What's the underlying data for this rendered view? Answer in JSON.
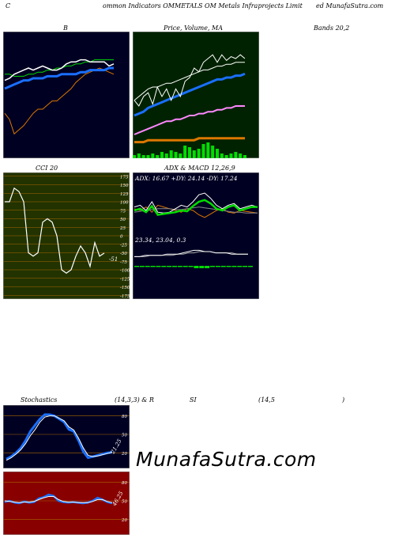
{
  "header": {
    "left": "C",
    "title": "ommon Indicators OMMETALS OM Metals Infraprojects Limit",
    "right": "ed MunafaSutra.com"
  },
  "row1": {
    "label_b": "B",
    "label_price": "Price, Volume, MA",
    "label_bands": "Bands 20,2"
  },
  "row2": {
    "label_cci": "CCI 20",
    "label_adx": "ADX  & MACD 12,26,9",
    "adx_readout": "ADX: 16.67  +DY: 24.14  -DY: 17.24",
    "macd_readout": "23.34,  23.04,  0.3",
    "cci_last": "-51"
  },
  "row3": {
    "label_stoch": "Stochastics",
    "label_params": "(14,3,3) & R",
    "label_si": "SI",
    "label_rsi": "(14,5",
    "label_close": ")",
    "stoch_last": "21.25",
    "rsi_last": "46.25"
  },
  "watermark": "MunafaSutra.com",
  "colors": {
    "bb_bg": "#000022",
    "price_bg": "#002200",
    "cci_bg": "#223300",
    "adx_bg": "#000022",
    "stoch_bg": "#000022",
    "rsi_bg": "#880000",
    "blue": "#1a6fff",
    "green": "#00dd00",
    "orange": "#dd7700",
    "white": "#ffffff",
    "pink": "#ff88ff",
    "grid": "#aa6600"
  },
  "chart_data": [
    {
      "type": "line",
      "name": "Bollinger Bands 20,2",
      "series": [
        {
          "values": [
            52,
            55,
            62,
            60,
            58,
            55,
            52,
            50,
            50,
            48,
            46,
            46,
            44,
            42,
            40,
            37,
            35,
            33,
            32,
            31,
            30,
            31,
            32,
            33
          ]
        },
        {
          "values": [
            33,
            33,
            34,
            34,
            34,
            33,
            33,
            32,
            32,
            31,
            31,
            30,
            30,
            29,
            29,
            28,
            28,
            27,
            27,
            26,
            26,
            26,
            26,
            26
          ]
        },
        {
          "values": [
            40,
            39,
            38,
            37,
            36,
            36,
            35,
            35,
            35,
            34,
            34,
            34,
            33,
            33,
            33,
            33,
            32,
            32,
            31,
            31,
            31,
            31,
            30,
            30
          ]
        },
        {
          "values": [
            58,
            56,
            52,
            49,
            47,
            44,
            42,
            41,
            40,
            39,
            39,
            38,
            36,
            35,
            34,
            33,
            33,
            32,
            32,
            32,
            32,
            31,
            31,
            31
          ]
        },
        {
          "values": [
            36,
            35,
            33,
            32,
            31,
            30,
            31,
            30,
            29,
            30,
            31,
            31,
            30,
            28,
            27,
            27,
            26,
            26,
            27,
            27,
            27,
            27,
            29,
            28
          ]
        }
      ]
    },
    {
      "type": "line",
      "name": "Price, Volume, MA",
      "series": [
        {
          "values": [
            52,
            55,
            50,
            48,
            54,
            45,
            50,
            46,
            52,
            46,
            50,
            42,
            40,
            35,
            37,
            32,
            30,
            28,
            32,
            28,
            31,
            29,
            30,
            28,
            30
          ]
        },
        {
          "values": [
            60,
            59,
            58,
            56,
            55,
            54,
            53,
            52,
            51,
            50,
            49,
            48,
            47,
            46,
            45,
            44,
            43,
            42,
            41,
            41,
            40,
            40,
            39,
            39,
            38
          ]
        },
        {
          "values": [
            52,
            50,
            48,
            46,
            45,
            45,
            44,
            43,
            43,
            42,
            41,
            40,
            39,
            38,
            37,
            36,
            36,
            35,
            34,
            34,
            33,
            33,
            32,
            32,
            32
          ]
        },
        {
          "values": [
            70,
            69,
            68,
            67,
            66,
            65,
            64,
            63,
            63,
            62,
            62,
            61,
            60,
            60,
            59,
            59,
            58,
            58,
            57,
            57,
            56,
            56,
            55,
            55,
            55
          ]
        },
        {
          "values": [
            74,
            74,
            74,
            73,
            73,
            73,
            73,
            73,
            73,
            73,
            73,
            73,
            73,
            73,
            72,
            72,
            72,
            72,
            72,
            72,
            72,
            72,
            72,
            72,
            72
          ]
        }
      ],
      "volume": [
        2,
        3,
        2,
        2,
        3,
        2,
        4,
        3,
        5,
        4,
        3,
        8,
        7,
        5,
        6,
        9,
        10,
        8,
        6,
        3,
        2,
        3,
        4,
        3,
        2
      ]
    },
    {
      "type": "line",
      "name": "CCI 20",
      "yticks": [
        175,
        150,
        125,
        100,
        75,
        50,
        25,
        0,
        -25,
        -50,
        -75,
        -100,
        -125,
        -150,
        -175
      ],
      "values": [
        100,
        100,
        140,
        130,
        100,
        -50,
        -60,
        -50,
        40,
        50,
        40,
        0,
        -100,
        -110,
        -100,
        -60,
        -30,
        -50,
        -90,
        -20,
        -60,
        -51
      ]
    },
    {
      "type": "line",
      "name": "ADX & MACD",
      "adx": {
        "plus_di": [
          20,
          22,
          18,
          25,
          15,
          16,
          17,
          18,
          20,
          19,
          25,
          30,
          32,
          28,
          22,
          20,
          24,
          26,
          20,
          22,
          24,
          24
        ],
        "minus_di": [
          22,
          20,
          24,
          18,
          26,
          24,
          22,
          20,
          18,
          22,
          20,
          15,
          12,
          16,
          20,
          22,
          18,
          17,
          20,
          19,
          18,
          17
        ],
        "adx": [
          18,
          19,
          20,
          21,
          22,
          22,
          22,
          21,
          21,
          22,
          23,
          24,
          23,
          22,
          21,
          20,
          19,
          18,
          18,
          17,
          17,
          17
        ],
        "white": [
          24,
          26,
          20,
          30,
          18,
          17,
          18,
          22,
          26,
          24,
          30,
          38,
          40,
          34,
          26,
          22,
          26,
          28,
          22,
          24,
          26,
          24
        ]
      },
      "macd": {
        "macd": [
          21,
          21,
          22,
          22,
          22,
          22,
          23,
          23,
          23,
          24,
          25,
          26,
          26,
          25,
          25,
          24,
          24,
          24,
          23,
          23,
          23,
          23
        ],
        "signal": [
          21,
          21,
          21,
          22,
          22,
          22,
          22,
          22,
          23,
          23,
          24,
          24,
          25,
          25,
          25,
          24,
          24,
          24,
          24,
          23,
          23,
          23
        ],
        "hist": [
          1,
          1,
          1,
          1,
          1,
          1,
          1,
          1,
          1,
          1,
          1,
          2,
          2,
          2,
          1,
          1,
          1,
          1,
          1,
          1,
          1,
          1
        ]
      }
    },
    {
      "type": "line",
      "name": "Stochastics (14,3,3)",
      "yticks": [
        80,
        50,
        20
      ],
      "k": [
        10,
        14,
        20,
        28,
        40,
        55,
        65,
        75,
        82,
        82,
        80,
        75,
        70,
        58,
        55,
        40,
        22,
        12,
        14,
        16,
        18,
        20,
        21
      ],
      "d": [
        8,
        12,
        18,
        25,
        35,
        48,
        58,
        70,
        78,
        80,
        80,
        76,
        72,
        62,
        57,
        44,
        28,
        16,
        14,
        15,
        17,
        19,
        21
      ]
    },
    {
      "type": "line",
      "name": "RSI (14,5)",
      "yticks": [
        80,
        50,
        20
      ],
      "rsi": [
        48,
        50,
        47,
        46,
        49,
        47,
        48,
        54,
        56,
        60,
        58,
        50,
        48,
        47,
        48,
        47,
        46,
        47,
        50,
        55,
        52,
        48,
        46
      ],
      "mrsi": [
        50,
        49,
        48,
        47,
        48,
        48,
        49,
        52,
        55,
        57,
        57,
        52,
        49,
        48,
        48,
        47,
        47,
        47,
        49,
        52,
        52,
        49,
        47
      ]
    }
  ]
}
